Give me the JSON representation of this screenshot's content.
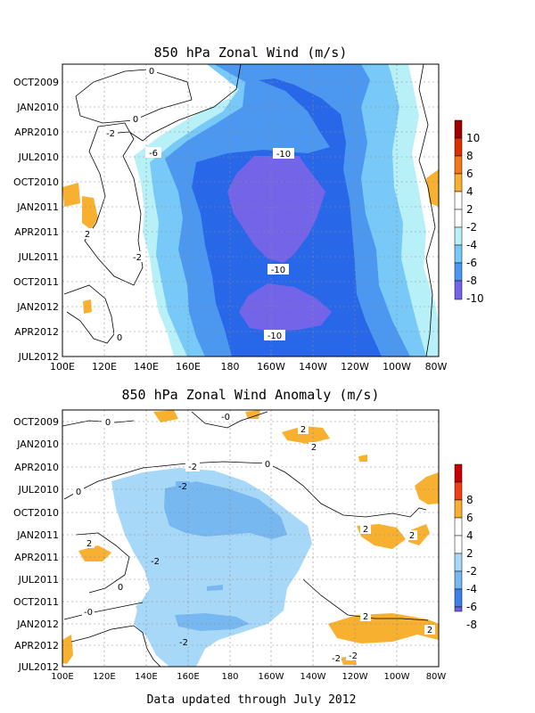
{
  "footer_text": "Data updated through July 2012",
  "chart_data": [
    {
      "type": "heatmap",
      "title": "850 hPa Zonal Wind (m/s)",
      "xlabel": "",
      "ylabel": "",
      "x_ticks": [
        "100E",
        "120E",
        "140E",
        "160E",
        "180",
        "160W",
        "140W",
        "120W",
        "100W",
        "80W"
      ],
      "y_ticks": [
        "OCT2009",
        "JAN2010",
        "APR2010",
        "JUL2010",
        "OCT2010",
        "JAN2011",
        "APR2011",
        "JUL2011",
        "OCT2011",
        "JAN2012",
        "APR2012",
        "JUL2012"
      ],
      "colorbar": {
        "ticks": [
          "10",
          "8",
          "6",
          "4",
          "2",
          "-2",
          "-4",
          "-6",
          "-8",
          "-10"
        ],
        "colors": [
          "#a00000",
          "#d83000",
          "#f07818",
          "#f8b030",
          "#ffffff",
          "#b8f0f8",
          "#78c8f8",
          "#4c98f0",
          "#2868e8",
          "#7464e8"
        ]
      },
      "contour_labels": [
        "0",
        "0",
        "-2",
        "-6",
        "-10",
        "-10",
        "-10",
        "-2",
        "2",
        "0"
      ],
      "grid": true
    },
    {
      "type": "heatmap",
      "title": "850 hPa Zonal Wind Anomaly (m/s)",
      "xlabel": "",
      "ylabel": "",
      "x_ticks": [
        "100E",
        "120E",
        "140E",
        "160E",
        "180",
        "160W",
        "140W",
        "120W",
        "100W",
        "80W"
      ],
      "y_ticks": [
        "OCT2009",
        "JAN2010",
        "APR2010",
        "JUL2010",
        "OCT2010",
        "JAN2011",
        "APR2011",
        "JUL2011",
        "OCT2011",
        "JAN2012",
        "APR2012",
        "JUL2012"
      ],
      "colorbar": {
        "ticks": [
          "8",
          "6",
          "4",
          "2",
          "-2",
          "-4",
          "-6",
          "-8"
        ],
        "colors": [
          "#c80000",
          "#f04010",
          "#f8b030",
          "#ffffff",
          "#a8d8f8",
          "#78b8f0",
          "#3c80e8",
          "#7060e0"
        ]
      },
      "contour_labels": [
        "0",
        "-0",
        "2",
        "2",
        "-2",
        "0",
        "-2",
        "0",
        "-2",
        "2",
        "2",
        "2",
        "2",
        "0",
        "-0",
        "-2",
        "2",
        "-2",
        "-2"
      ],
      "grid": true
    }
  ]
}
